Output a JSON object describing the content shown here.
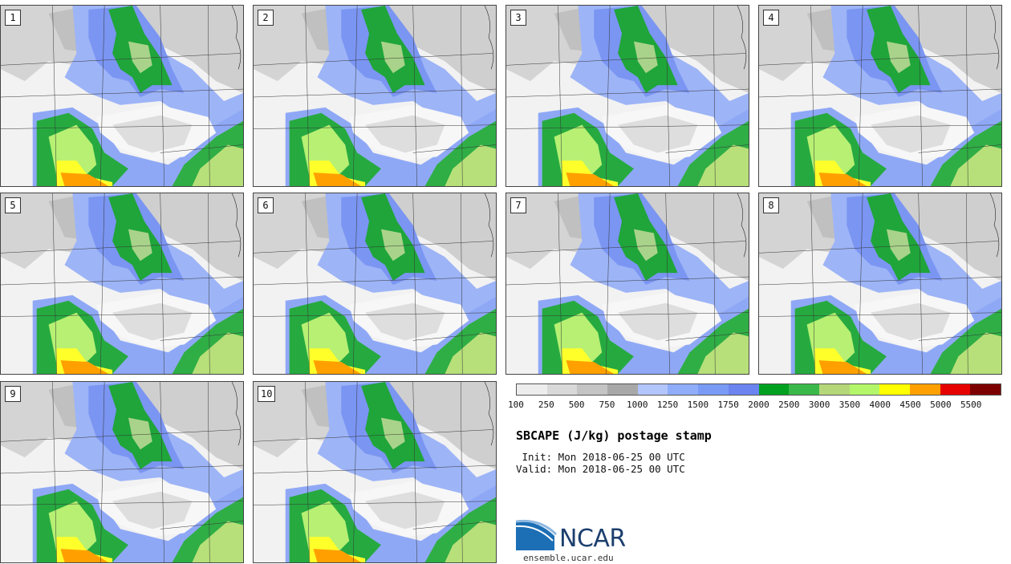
{
  "panels": [
    {
      "label": "1"
    },
    {
      "label": "2"
    },
    {
      "label": "3"
    },
    {
      "label": "4"
    },
    {
      "label": "5"
    },
    {
      "label": "6"
    },
    {
      "label": "7"
    },
    {
      "label": "8"
    },
    {
      "label": "9"
    },
    {
      "label": "10"
    }
  ],
  "colorbar": {
    "ticks": [
      "100",
      "250",
      "500",
      "750",
      "1000",
      "1250",
      "1500",
      "1750",
      "2000",
      "2500",
      "3000",
      "3500",
      "4000",
      "4500",
      "5000",
      "5500"
    ],
    "colors": [
      "#ededed",
      "#d9d9d9",
      "#c4c4c4",
      "#a8a8a8",
      "#b3c6fb",
      "#8fadf9",
      "#7a9bf5",
      "#6b84f0",
      "#00a020",
      "#3ab84a",
      "#b6d67a",
      "#b3f66a",
      "#ffff00",
      "#ffa000",
      "#e60000",
      "#7d0000"
    ]
  },
  "title": "SBCAPE (J/kg) postage stamp",
  "init": " Init: Mon 2018-06-25 00 UTC",
  "valid": "Valid: Mon 2018-06-25 00 UTC",
  "logo": {
    "text": "NCAR",
    "url": "ensemble.ucar.edu"
  }
}
